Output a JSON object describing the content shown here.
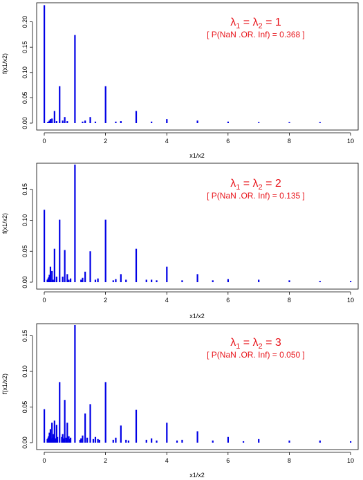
{
  "colors": {
    "bar": "#0000e6",
    "annotation": "#e8141b",
    "axis": "#000000"
  },
  "chart_data": [
    {
      "type": "bar",
      "xlabel": "x1/x2",
      "ylabel": "f(x1/x2)",
      "xlim": [
        0,
        10
      ],
      "ylim": [
        0,
        0.235
      ],
      "xticks": [
        "0",
        "2",
        "4",
        "6",
        "8",
        "10"
      ],
      "yticks": [
        "0.00",
        "0.05",
        "0.10",
        "0.15",
        "0.20"
      ],
      "yticks_values": [
        0,
        0.05,
        0.1,
        0.15,
        0.2
      ],
      "annotation_prefix": "λ",
      "annotation_sub1": "1",
      "annotation_mid": " = λ",
      "annotation_sub2": "2",
      "annotation_value": " = 1",
      "annotation_note": "[ P(NaN .OR. Inf) = 0.368 ]",
      "x": [
        0,
        0.111,
        0.143,
        0.167,
        0.2,
        0.25,
        0.333,
        0.4,
        0.5,
        0.6,
        0.667,
        0.75,
        1,
        1.25,
        1.333,
        1.5,
        1.667,
        2,
        2.333,
        2.5,
        3,
        3.5,
        4,
        5,
        6,
        7,
        8,
        9
      ],
      "values": [
        0.233,
        0.002,
        0.003,
        0.005,
        0.008,
        0.009,
        0.024,
        0.004,
        0.073,
        0.005,
        0.012,
        0.004,
        0.174,
        0.003,
        0.005,
        0.012,
        0.003,
        0.073,
        0.003,
        0.004,
        0.024,
        0.003,
        0.008,
        0.005,
        0.003,
        0.002,
        0.002,
        0.002
      ]
    },
    {
      "type": "bar",
      "xlabel": "x1/x2",
      "ylabel": "f(x1/x2)",
      "xlim": [
        0,
        10
      ],
      "ylim": [
        0,
        0.19
      ],
      "xticks": [
        "0",
        "2",
        "4",
        "6",
        "8",
        "10"
      ],
      "yticks": [
        "0.00",
        "0.05",
        "0.10",
        "0.15"
      ],
      "yticks_values": [
        0,
        0.05,
        0.1,
        0.15
      ],
      "annotation_prefix": "λ",
      "annotation_sub1": "1",
      "annotation_mid": " = λ",
      "annotation_sub2": "2",
      "annotation_value": " = 2",
      "annotation_note": "[ P(NaN .OR. Inf) = 0.135 ]",
      "x": [
        0,
        0.1,
        0.125,
        0.143,
        0.167,
        0.2,
        0.25,
        0.286,
        0.333,
        0.4,
        0.5,
        0.6,
        0.667,
        0.75,
        0.8,
        0.857,
        1,
        1.2,
        1.25,
        1.333,
        1.5,
        1.667,
        1.75,
        2,
        2.25,
        2.333,
        2.5,
        2.667,
        3,
        3.333,
        3.5,
        3.667,
        4,
        4.5,
        5,
        5.5,
        6,
        7,
        8,
        9,
        10
      ],
      "values": [
        0.117,
        0.004,
        0.006,
        0.008,
        0.012,
        0.025,
        0.018,
        0.004,
        0.054,
        0.009,
        0.101,
        0.009,
        0.052,
        0.013,
        0.004,
        0.006,
        0.19,
        0.004,
        0.007,
        0.017,
        0.05,
        0.004,
        0.006,
        0.101,
        0.003,
        0.005,
        0.013,
        0.004,
        0.054,
        0.004,
        0.004,
        0.003,
        0.025,
        0.003,
        0.013,
        0.003,
        0.005,
        0.004,
        0.003,
        0.002,
        0.002
      ]
    },
    {
      "type": "bar",
      "xlabel": "x1/x2",
      "ylabel": "f(x1/x2)",
      "xlim": [
        0,
        10
      ],
      "ylim": [
        0,
        0.165
      ],
      "xticks": [
        "0",
        "2",
        "4",
        "6",
        "8",
        "10"
      ],
      "yticks": [
        "0.00",
        "0.05",
        "0.10",
        "0.15"
      ],
      "yticks_values": [
        0,
        0.05,
        0.1,
        0.15
      ],
      "annotation_prefix": "λ",
      "annotation_sub1": "1",
      "annotation_mid": " = λ",
      "annotation_sub2": "2",
      "annotation_value": " = 3",
      "annotation_note": "[ P(NaN .OR. Inf) = 0.050 ]",
      "x": [
        0,
        0.1,
        0.125,
        0.143,
        0.167,
        0.2,
        0.222,
        0.25,
        0.286,
        0.3,
        0.333,
        0.375,
        0.4,
        0.429,
        0.5,
        0.571,
        0.6,
        0.625,
        0.667,
        0.714,
        0.75,
        0.8,
        0.833,
        0.857,
        1,
        1.167,
        1.2,
        1.25,
        1.333,
        1.4,
        1.5,
        1.6,
        1.667,
        1.75,
        1.8,
        2,
        2.25,
        2.333,
        2.5,
        2.667,
        2.75,
        3,
        3.333,
        3.5,
        3.667,
        4,
        4.333,
        4.5,
        5,
        5.5,
        6,
        6.5,
        7,
        8,
        9,
        10
      ],
      "values": [
        0.047,
        0.005,
        0.007,
        0.009,
        0.014,
        0.019,
        0.006,
        0.028,
        0.007,
        0.012,
        0.031,
        0.006,
        0.025,
        0.008,
        0.085,
        0.008,
        0.012,
        0.006,
        0.06,
        0.007,
        0.028,
        0.009,
        0.005,
        0.007,
        0.165,
        0.004,
        0.006,
        0.01,
        0.041,
        0.007,
        0.054,
        0.005,
        0.008,
        0.005,
        0.004,
        0.085,
        0.004,
        0.007,
        0.024,
        0.004,
        0.003,
        0.046,
        0.004,
        0.006,
        0.003,
        0.028,
        0.003,
        0.004,
        0.016,
        0.003,
        0.008,
        0.002,
        0.005,
        0.003,
        0.003,
        0.002
      ]
    }
  ]
}
